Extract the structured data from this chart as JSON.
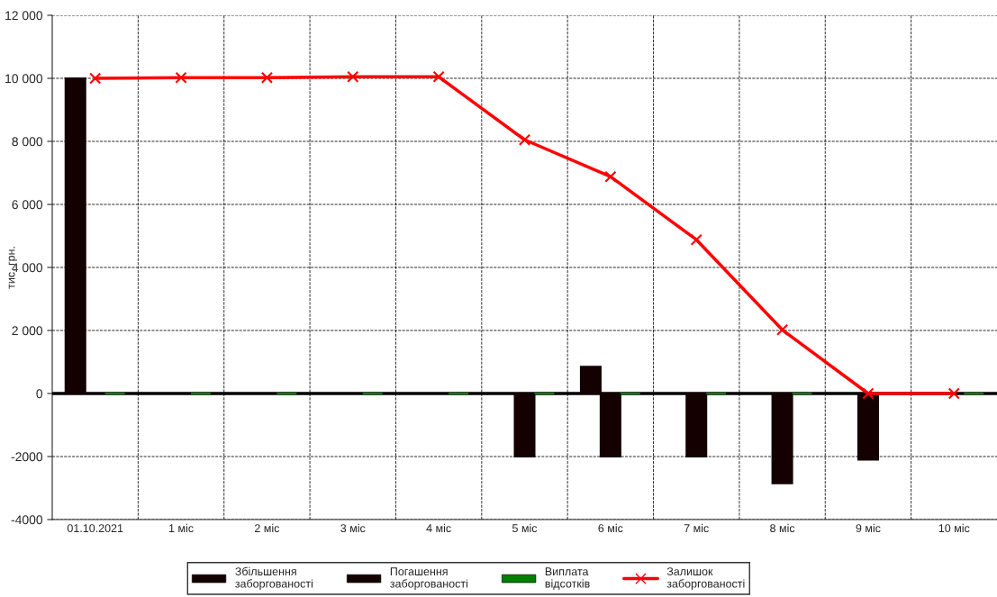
{
  "chart_data": {
    "type": "bar",
    "ylabel": "тис. грн.",
    "categories": [
      "01.10.2021",
      "1 міс",
      "2 міс",
      "3 міс",
      "4 міс",
      "5 міс",
      "6 міс",
      "7 міс",
      "8 міс",
      "9 міс",
      "10 міс"
    ],
    "series": [
      {
        "name": "Збільшення заборгованості",
        "color": "#140000",
        "values": [
          10000,
          null,
          null,
          null,
          null,
          null,
          850,
          null,
          null,
          null,
          null
        ]
      },
      {
        "name": "Погашення заборгованості",
        "color": "#140000",
        "values": [
          null,
          null,
          null,
          null,
          null,
          -2000,
          -2000,
          -2000,
          -2850,
          -2100,
          null
        ]
      },
      {
        "name": "Виплата відсотків",
        "color": "#008000",
        "values": [
          0,
          0,
          0,
          0,
          0,
          0,
          0,
          0,
          0,
          0,
          0
        ]
      },
      {
        "name": "Залишок заборгованості",
        "type": "line",
        "color": "#ff0000",
        "marker": "cross",
        "values": [
          10000,
          10020,
          10020,
          10050,
          10050,
          8050,
          6880,
          4880,
          2020,
          0,
          0
        ]
      }
    ],
    "ylim": [
      -4000,
      12000
    ],
    "yticks": [
      {
        "value": -4000,
        "label": "-4000"
      },
      {
        "value": -2000,
        "label": "-2000"
      },
      0,
      {
        "value": 2000,
        "label": "2 000"
      },
      {
        "value": 4000,
        "label": "4 000"
      },
      {
        "value": 6000,
        "label": "6 000"
      },
      {
        "value": 8000,
        "label": "8 000"
      },
      {
        "value": 10000,
        "label": "10 000"
      },
      {
        "value": 12000,
        "label": "12 000"
      }
    ],
    "grid": true,
    "legend": "bottom"
  }
}
